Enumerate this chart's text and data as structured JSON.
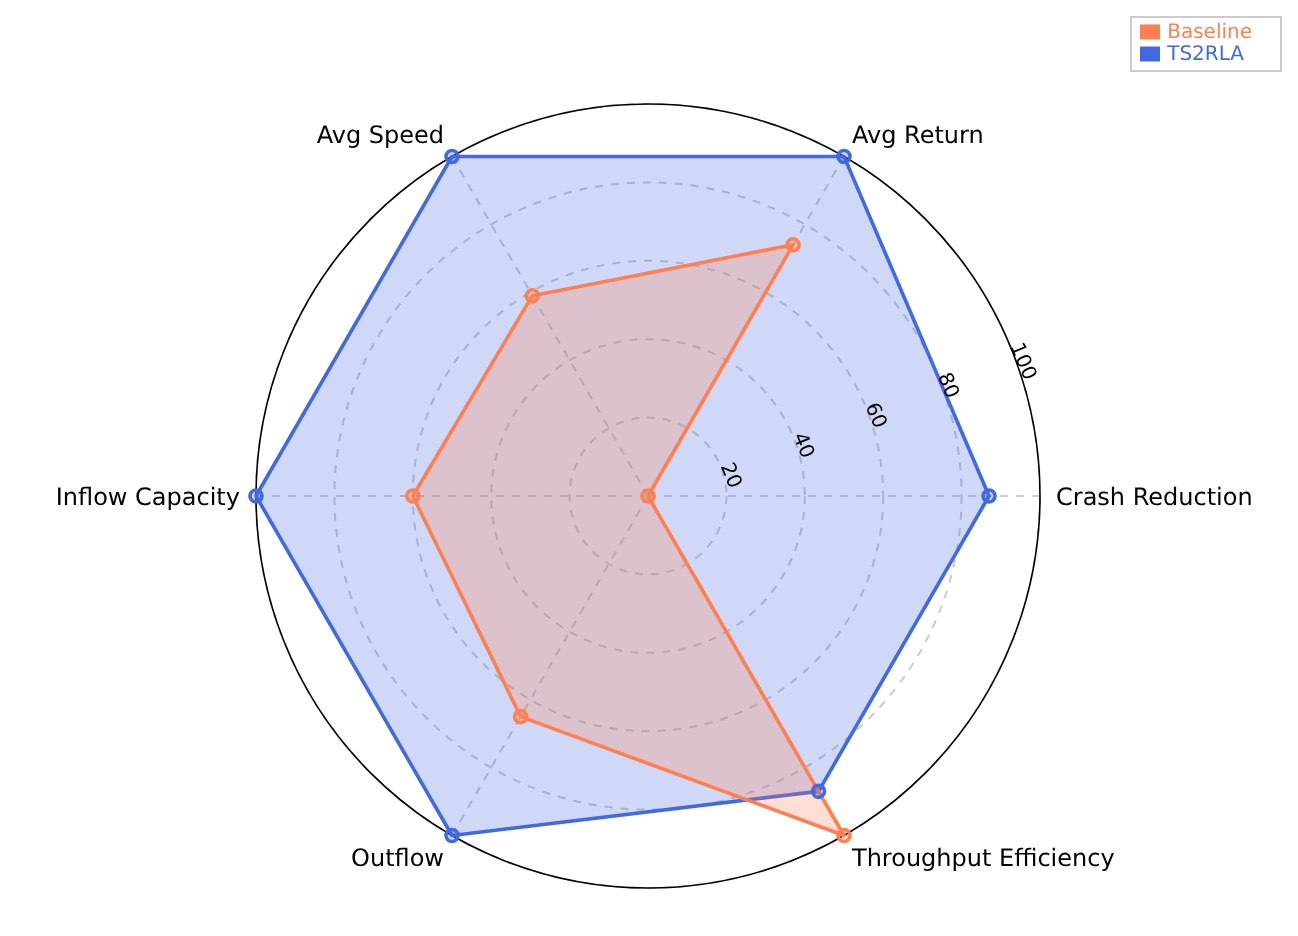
{
  "chart_data": {
    "type": "radar",
    "categories": [
      "Avg Return",
      "Crash Reduction",
      "Throughput Efficiency",
      "Outflow",
      "Inflow Capacity",
      "Avg Speed"
    ],
    "series": [
      {
        "name": "TS2RLA",
        "color": "#4169e1",
        "values": [
          100,
          87,
          87,
          100,
          100,
          100
        ]
      },
      {
        "name": "Baseline",
        "color": "#ff7f50",
        "values": [
          74,
          0,
          100,
          65,
          60,
          59
        ]
      }
    ],
    "ylim": [
      0,
      100
    ],
    "yticks": [
      20,
      40,
      60,
      80,
      100
    ],
    "grid": true,
    "legend": "top right",
    "marker": "circle",
    "line_style": "solid"
  }
}
